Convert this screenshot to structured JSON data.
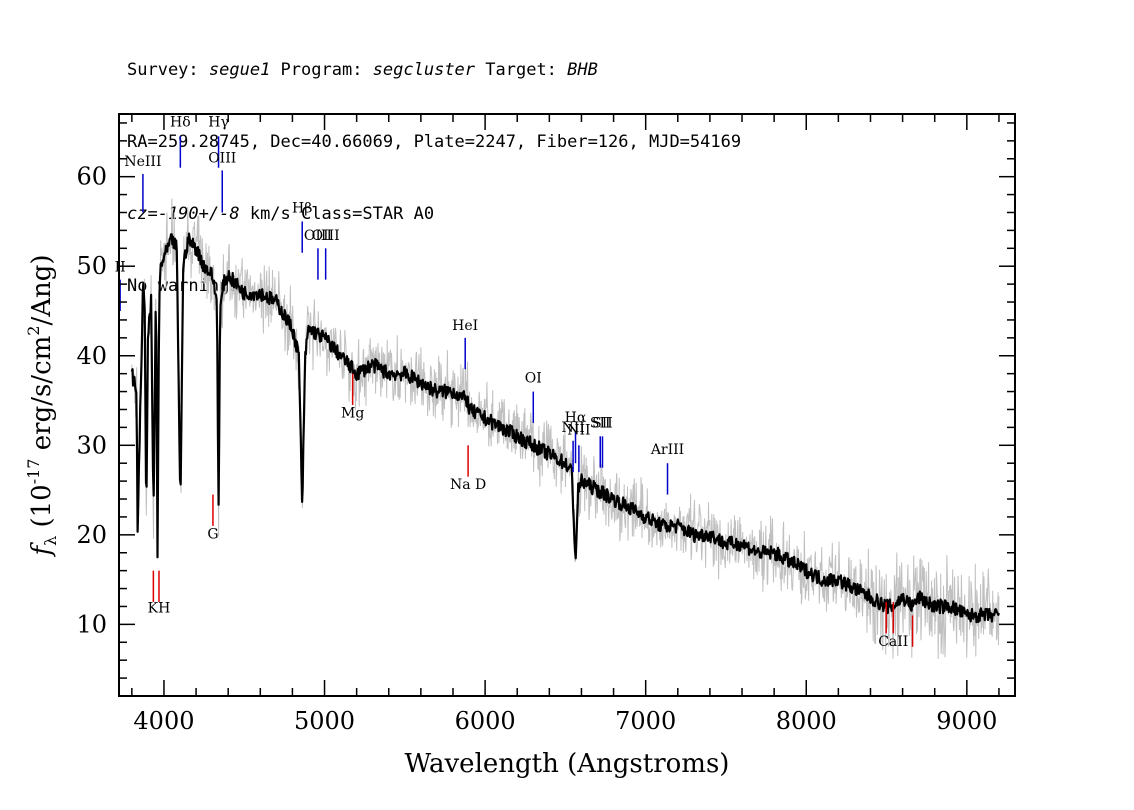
{
  "header": {
    "line1": {
      "survey_label": "Survey: ",
      "survey": "segue1",
      "program_label": " Program: ",
      "program": "segcluster",
      "target_label": " Target: ",
      "target": "BHB"
    },
    "line2": "RA=259.28745, Dec=40.66069, Plate=2247, Fiber=126, MJD=54169",
    "line3": {
      "cz": "cz=-190+/-8",
      "rest": " km/s Class=STAR A0"
    },
    "line4": "No warnings."
  },
  "chart_data": {
    "type": "line",
    "xlabel": "Wavelength (Angstroms)",
    "ylabel": "f_λ (10^-17 erg/s/cm^2/Ang)",
    "ylabel_parts": {
      "f": "f",
      "lambda": "λ",
      "pre": "(10",
      "exp1": "-17",
      "mid": " erg/s/cm",
      "exp2": "2",
      "post": "/Ang)"
    },
    "xlim": [
      3720,
      9300
    ],
    "ylim": [
      2,
      67
    ],
    "xticks": [
      4000,
      5000,
      6000,
      7000,
      8000,
      9000
    ],
    "yticks": [
      10,
      20,
      30,
      40,
      50,
      60
    ],
    "xtick_labels": [
      "4000",
      "5000",
      "6000",
      "7000",
      "8000",
      "9000"
    ],
    "ytick_labels": [
      "10",
      "20",
      "30",
      "40",
      "50",
      "60"
    ],
    "colors": {
      "spectrum": "#000000",
      "noise": "#c0c0c0",
      "emission": "#0000cc",
      "absorption": "#dd0000"
    },
    "spectrum": {
      "name": "flux",
      "x": [
        3800,
        3830,
        3835,
        3850,
        3870,
        3880,
        3890,
        3900,
        3920,
        3935,
        3950,
        3960,
        3970,
        3980,
        4000,
        4050,
        4080,
        4102,
        4120,
        4150,
        4200,
        4250,
        4300,
        4330,
        4340,
        4350,
        4370,
        4400,
        4450,
        4500,
        4600,
        4700,
        4800,
        4840,
        4861,
        4880,
        4900,
        5000,
        5100,
        5200,
        5300,
        5400,
        5500,
        5600,
        5700,
        5800,
        5890,
        5900,
        6000,
        6100,
        6200,
        6300,
        6400,
        6500,
        6540,
        6563,
        6580,
        6600,
        6700,
        6800,
        6900,
        7000,
        7100,
        7200,
        7300,
        7400,
        7500,
        7600,
        7700,
        7800,
        7900,
        8000,
        8100,
        8200,
        8300,
        8400,
        8498,
        8542,
        8600,
        8662,
        8700,
        8800,
        8900,
        9000,
        9100,
        9200
      ],
      "y": [
        38,
        36,
        20,
        32,
        48,
        45,
        22,
        42,
        46,
        22,
        48,
        18,
        46,
        50,
        51,
        53,
        52,
        23,
        50,
        53,
        52,
        50,
        49,
        46,
        23,
        45,
        48,
        49,
        48,
        47,
        47,
        46,
        43,
        40,
        23,
        40,
        43,
        42,
        40,
        38,
        39,
        38,
        38,
        37,
        36,
        36,
        35,
        34,
        33,
        32,
        31,
        30,
        29,
        28,
        27,
        17,
        25,
        26,
        25,
        24,
        23,
        22,
        21,
        21,
        20,
        20,
        19,
        19,
        18,
        18,
        17,
        16,
        15,
        15,
        14,
        13,
        12,
        12,
        13,
        12,
        13,
        12,
        12,
        11,
        11,
        11
      ]
    },
    "emission_lines": [
      {
        "label": "NeIII",
        "x": 3869,
        "y0": 56,
        "y1": 60.3,
        "ly": 61.2
      },
      {
        "label": "Hδ",
        "x": 4102,
        "y0": 61,
        "y1": 64.5,
        "ly": 65.6
      },
      {
        "label": "Hγ",
        "x": 4340,
        "y0": 61,
        "y1": 64.5,
        "ly": 65.6
      },
      {
        "label": "OIII",
        "x": 4363,
        "y0": 56,
        "y1": 60.7,
        "ly": 61.6
      },
      {
        "label": "Hβ",
        "x": 4861,
        "y0": 51.5,
        "y1": 55,
        "ly": 56
      },
      {
        "label": "OIII",
        "x": 4959,
        "y0": 48.5,
        "y1": 52,
        "ly": 52.9
      },
      {
        "label": "OIII",
        "x": 5007,
        "y0": 48.5,
        "y1": 52,
        "ly": 52.9
      },
      {
        "label": "HeI",
        "x": 5876,
        "y0": 38.5,
        "y1": 42,
        "ly": 42.9
      },
      {
        "label": "OI",
        "x": 6300,
        "y0": 32.5,
        "y1": 36,
        "ly": 37
      },
      {
        "label": "NII",
        "x": 6548,
        "y0": 27,
        "y1": 30.5,
        "ly": 31.5
      },
      {
        "label": "Hα",
        "x": 6563,
        "y0": 28,
        "y1": 31.5,
        "ly": 32.6
      },
      {
        "label": "NII",
        "x": 6584,
        "y0": 27,
        "y1": 30,
        "ly": 31.2
      },
      {
        "label": "SII",
        "x": 6717,
        "y0": 27.5,
        "y1": 31,
        "ly": 32
      },
      {
        "label": "SII",
        "x": 6731,
        "y0": 27.5,
        "y1": 31,
        "ly": 32
      },
      {
        "label": "ArIII",
        "x": 7136,
        "y0": 24.5,
        "y1": 28,
        "ly": 29
      },
      {
        "label": "II",
        "x": 3727,
        "y0": 45,
        "y1": 48.5,
        "ly": 49.4
      }
    ],
    "absorption_lines": [
      {
        "label": "",
        "x": 3934,
        "y0": 12.5,
        "y1": 16,
        "ly": null
      },
      {
        "label": "KH",
        "x": 3969,
        "y0": 12.5,
        "y1": 16,
        "ly": 11.3
      },
      {
        "label": "G",
        "x": 4305,
        "y0": 21,
        "y1": 24.5,
        "ly": 19.6
      },
      {
        "label": "Mg",
        "x": 5175,
        "y0": 34.5,
        "y1": 38,
        "ly": 33.1
      },
      {
        "label": "Na D",
        "x": 5894,
        "y0": 26.5,
        "y1": 30,
        "ly": 25.1
      },
      {
        "label": "",
        "x": 8498,
        "y0": 9,
        "y1": 12.5,
        "ly": null
      },
      {
        "label": "CaII",
        "x": 8542,
        "y0": 9,
        "y1": 12.5,
        "ly": 7.6
      },
      {
        "label": "",
        "x": 8662,
        "y0": 7.5,
        "y1": 11,
        "ly": null
      }
    ]
  }
}
